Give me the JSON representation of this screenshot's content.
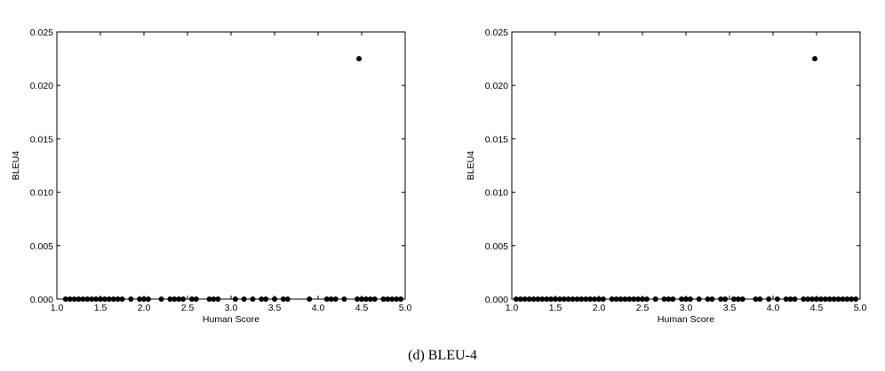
{
  "caption": "(d) BLEU-4",
  "chart_data": [
    {
      "type": "scatter",
      "xlabel": "Human Score",
      "ylabel": "BLEU4",
      "xlim": [
        1.0,
        5.0
      ],
      "ylim": [
        0.0,
        0.025
      ],
      "xticks": [
        "1.0",
        "1.5",
        "2.0",
        "2.5",
        "3.0",
        "3.5",
        "4.0",
        "4.5",
        "5.0"
      ],
      "yticks": [
        "0.000",
        "0.005",
        "0.010",
        "0.015",
        "0.020",
        "0.025"
      ],
      "grid": false,
      "point_color": "#000000",
      "x": [
        1.1,
        1.15,
        1.2,
        1.25,
        1.3,
        1.35,
        1.4,
        1.45,
        1.5,
        1.55,
        1.6,
        1.65,
        1.7,
        1.75,
        1.85,
        1.95,
        2.0,
        2.05,
        2.2,
        2.3,
        2.35,
        2.4,
        2.45,
        2.55,
        2.6,
        2.75,
        2.8,
        2.85,
        3.05,
        3.15,
        3.25,
        3.35,
        3.4,
        3.5,
        3.6,
        3.65,
        3.9,
        4.1,
        4.15,
        4.2,
        4.3,
        4.45,
        4.5,
        4.55,
        4.6,
        4.65,
        4.75,
        4.8,
        4.85,
        4.9,
        4.95,
        4.47
      ],
      "y": [
        0,
        0,
        0,
        0,
        0,
        0,
        0,
        0,
        0,
        0,
        0,
        0,
        0,
        0,
        0,
        0,
        0,
        0,
        0,
        0,
        0,
        0,
        0,
        0,
        0,
        0,
        0,
        0,
        0,
        0,
        0,
        0,
        0,
        0,
        0,
        0,
        0,
        0,
        0,
        0,
        0,
        0,
        0,
        0,
        0,
        0,
        0,
        0,
        0,
        0,
        0,
        0.0225
      ]
    },
    {
      "type": "scatter",
      "xlabel": "Human Score",
      "ylabel": "BLEU4",
      "xlim": [
        1.0,
        5.0
      ],
      "ylim": [
        0.0,
        0.025
      ],
      "xticks": [
        "1.0",
        "1.5",
        "2.0",
        "2.5",
        "3.0",
        "3.5",
        "4.0",
        "4.5",
        "5.0"
      ],
      "yticks": [
        "0.000",
        "0.005",
        "0.010",
        "0.015",
        "0.020",
        "0.025"
      ],
      "grid": false,
      "point_color": "#000000",
      "x": [
        1.05,
        1.1,
        1.15,
        1.2,
        1.25,
        1.3,
        1.35,
        1.4,
        1.45,
        1.5,
        1.55,
        1.6,
        1.65,
        1.7,
        1.75,
        1.8,
        1.85,
        1.9,
        1.95,
        2.0,
        2.05,
        2.15,
        2.2,
        2.25,
        2.3,
        2.35,
        2.4,
        2.45,
        2.5,
        2.55,
        2.65,
        2.75,
        2.8,
        2.85,
        2.95,
        3.0,
        3.05,
        3.15,
        3.25,
        3.3,
        3.4,
        3.45,
        3.55,
        3.6,
        3.65,
        3.8,
        3.85,
        3.95,
        4.05,
        4.15,
        4.2,
        4.25,
        4.35,
        4.4,
        4.45,
        4.5,
        4.55,
        4.6,
        4.65,
        4.7,
        4.75,
        4.8,
        4.85,
        4.9,
        4.95,
        4.48
      ],
      "y": [
        0,
        0,
        0,
        0,
        0,
        0,
        0,
        0,
        0,
        0,
        0,
        0,
        0,
        0,
        0,
        0,
        0,
        0,
        0,
        0,
        0,
        0,
        0,
        0,
        0,
        0,
        0,
        0,
        0,
        0,
        0,
        0,
        0,
        0,
        0,
        0,
        0,
        0,
        0,
        0,
        0,
        0,
        0,
        0,
        0,
        0,
        0,
        0,
        0,
        0,
        0,
        0,
        0,
        0,
        0,
        0,
        0,
        0,
        0,
        0,
        0,
        0,
        0,
        0,
        0,
        0.0225
      ]
    }
  ]
}
